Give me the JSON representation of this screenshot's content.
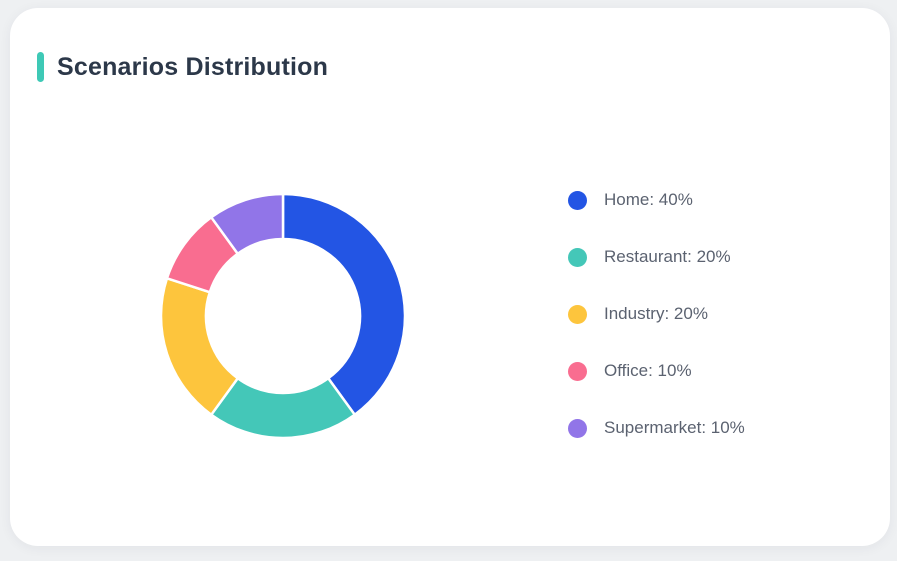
{
  "page": {
    "background_color": "#eef0f2"
  },
  "card": {
    "background_color": "#ffffff",
    "title": "Scenarios Distribution",
    "accent_color": "#3ec9b6",
    "title_color": "#2c3849"
  },
  "chart_data": {
    "type": "pie",
    "subtype": "donut",
    "title": "Scenarios Distribution",
    "categories": [
      "Home",
      "Restaurant",
      "Industry",
      "Office",
      "Supermarket"
    ],
    "values": [
      40,
      20,
      20,
      10,
      10
    ],
    "unit": "%",
    "colors": [
      "#2355e4",
      "#44c7b8",
      "#fdc53d",
      "#f96d90",
      "#9175e8"
    ],
    "start_angle_deg": 0,
    "direction": "clockwise",
    "inner_radius_ratio": 0.63,
    "segment_gap_color": "#ffffff",
    "legend_position": "right",
    "legend": [
      {
        "label": "Home: 40%",
        "color": "#2355e4"
      },
      {
        "label": "Restaurant: 20%",
        "color": "#44c7b8"
      },
      {
        "label": "Industry: 20%",
        "color": "#fdc53d"
      },
      {
        "label": "Office: 10%",
        "color": "#f96d90"
      },
      {
        "label": "Supermarket: 10%",
        "color": "#9175e8"
      }
    ]
  }
}
